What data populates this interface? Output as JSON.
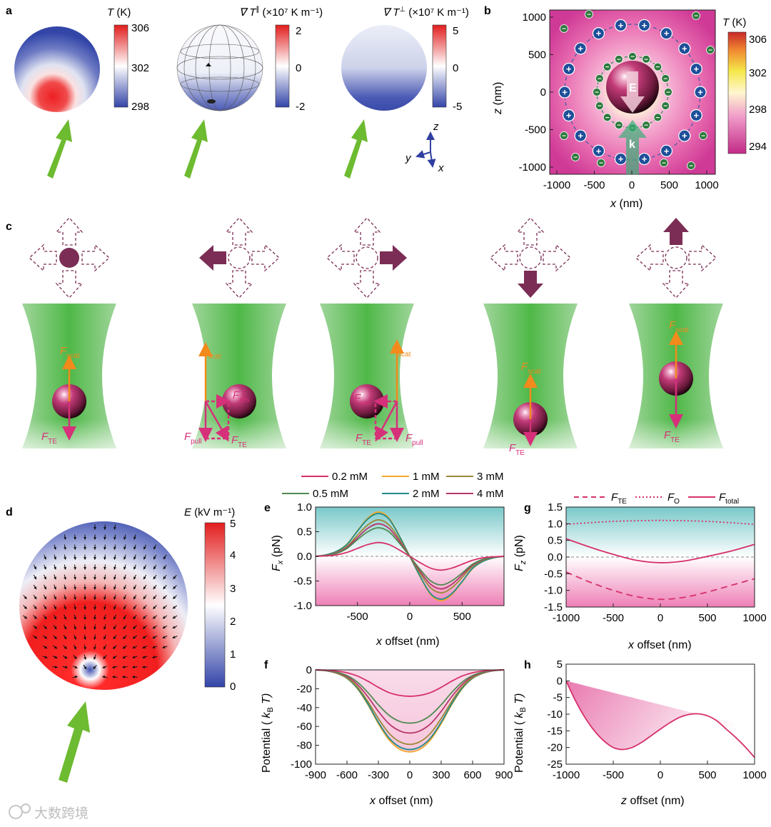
{
  "watermark": {
    "text": "大数跨境"
  },
  "panels": {
    "a": {
      "label": "a",
      "colorbars": [
        {
          "title_sym": "T",
          "title_unit": " (K)",
          "ticks": [
            "306",
            "302",
            "298"
          ]
        },
        {
          "title_sym": "∇ T",
          "title_sup": "∥",
          "title_unit": " (×10⁷ K m⁻¹)",
          "ticks": [
            "2",
            "0",
            "-2"
          ]
        },
        {
          "title_sym": "∇ T",
          "title_sup": "⊥",
          "title_unit": " (×10⁷ K m⁻¹)",
          "ticks": [
            "5",
            "0",
            "-5"
          ]
        }
      ],
      "axes_triad": {
        "z": "z",
        "y": "y",
        "x": "x"
      }
    },
    "b": {
      "label": "b",
      "xlabel_sym": "x",
      "xlabel_unit": " (nm)",
      "ylabel_sym": "z",
      "ylabel_unit": " (nm)",
      "xticks": [
        "-1000",
        "-500",
        "0",
        "500",
        "1000"
      ],
      "yticks": [
        "1000",
        "500",
        "0",
        "-500",
        "-1000"
      ],
      "colorbar": {
        "title_sym": "T",
        "title_unit": " (K)",
        "ticks": [
          "306",
          "302",
          "298",
          "294"
        ]
      },
      "E_label": "E",
      "k_label": "k",
      "plus": "+",
      "minus": "−"
    },
    "c": {
      "label": "c",
      "F_scat_main": "F",
      "F_scat_sub": "scat",
      "F_TE_main": "F",
      "F_TE_sub": "TE",
      "F_res_main": "F",
      "F_res_sub": "res",
      "F_pull_main": "F",
      "F_pull_sub": "pull"
    },
    "d": {
      "label": "d",
      "colorbar": {
        "title_sym": "E",
        "title_unit": " (kV m⁻¹)",
        "ticks": [
          "5",
          "4",
          "3",
          "2",
          "1",
          "0"
        ]
      }
    },
    "e": {
      "label": "e",
      "ylabel_sym": "F",
      "ylabel_sub": "x",
      "ylabel_unit": " (pN)",
      "xlabel_sym": "x",
      "xlabel_unit": " offset (nm)"
    },
    "f": {
      "label": "f",
      "ylabel_pre": "Potential ( ",
      "ylabel_sym": "k",
      "ylabel_sub": "B",
      "ylabel_post": " T)",
      "xlabel_sym": "x",
      "xlabel_unit": " offset (nm)"
    },
    "g": {
      "label": "g",
      "ylabel_sym": "F",
      "ylabel_sub": "z",
      "ylabel_unit": " (pN)",
      "xlabel_sym": "x",
      "xlabel_unit": " offset (nm)",
      "legend": [
        {
          "main": "F",
          "sub": "TE"
        },
        {
          "main": "F",
          "sub": "O"
        },
        {
          "main": "F",
          "sub": "total"
        }
      ]
    },
    "h": {
      "label": "h",
      "ylabel_pre": "Potential ( ",
      "ylabel_sym": "k",
      "ylabel_sub": "B",
      "ylabel_post": " T)",
      "xlabel_sym": "z",
      "xlabel_unit": " offset (nm)"
    }
  },
  "legend_ef": [
    "0.2 mM",
    "1 mM",
    "3 mM",
    "0.5 mM",
    "2 mM",
    "4 mM"
  ],
  "colors": {
    "c02": "#d6306a",
    "c05": "#4f8a50",
    "c1": "#f4a62a",
    "c2": "#1f8b8b",
    "c3": "#9a8a36",
    "c4": "#b5356b",
    "arrow_green": "#6dbb30",
    "magenta": "#d6307a",
    "orange": "#f28a1c",
    "maroon": "#7b2d55"
  },
  "chart_data": [
    {
      "panel": "e",
      "type": "line",
      "xlabel": "x offset (nm)",
      "ylabel": "Fx (pN)",
      "xlim": [
        -900,
        900
      ],
      "ylim": [
        -1.0,
        1.0
      ],
      "xticks": [
        -500,
        0,
        500
      ],
      "yticks": [
        1.0,
        0.5,
        0.0,
        -0.5,
        -1.0
      ],
      "x": [
        -900,
        -800,
        -700,
        -600,
        -500,
        -400,
        -300,
        -200,
        -100,
        0,
        100,
        200,
        300,
        400,
        500,
        600,
        700,
        800,
        900
      ],
      "series": [
        {
          "name": "0.2 mM",
          "color": "#d6306a",
          "values": [
            0,
            0.01,
            0.03,
            0.08,
            0.16,
            0.24,
            0.28,
            0.24,
            0.13,
            0,
            -0.13,
            -0.24,
            -0.28,
            -0.24,
            -0.16,
            -0.08,
            -0.03,
            -0.01,
            0
          ]
        },
        {
          "name": "0.5 mM",
          "color": "#4f8a50",
          "values": [
            0,
            0.02,
            0.06,
            0.16,
            0.34,
            0.5,
            0.58,
            0.5,
            0.27,
            0,
            -0.27,
            -0.5,
            -0.58,
            -0.5,
            -0.34,
            -0.16,
            -0.06,
            -0.02,
            0
          ]
        },
        {
          "name": "1 mM",
          "color": "#f4a62a",
          "values": [
            0,
            0.03,
            0.1,
            0.25,
            0.52,
            0.78,
            0.9,
            0.78,
            0.42,
            0,
            -0.42,
            -0.78,
            -0.9,
            -0.78,
            -0.52,
            -0.25,
            -0.1,
            -0.03,
            0
          ]
        },
        {
          "name": "2 mM",
          "color": "#1f8b8b",
          "values": [
            0,
            0.03,
            0.1,
            0.24,
            0.51,
            0.76,
            0.87,
            0.76,
            0.41,
            0,
            -0.41,
            -0.76,
            -0.87,
            -0.76,
            -0.51,
            -0.24,
            -0.1,
            -0.03,
            0
          ]
        },
        {
          "name": "3 mM",
          "color": "#9a8a36",
          "values": [
            0,
            0.02,
            0.08,
            0.2,
            0.43,
            0.64,
            0.74,
            0.64,
            0.35,
            0,
            -0.35,
            -0.64,
            -0.74,
            -0.64,
            -0.43,
            -0.2,
            -0.08,
            -0.02,
            0
          ]
        },
        {
          "name": "4 mM",
          "color": "#b5356b",
          "values": [
            0,
            0.02,
            0.07,
            0.18,
            0.38,
            0.57,
            0.66,
            0.57,
            0.31,
            0,
            -0.31,
            -0.57,
            -0.66,
            -0.57,
            -0.38,
            -0.18,
            -0.07,
            -0.02,
            0
          ]
        }
      ]
    },
    {
      "panel": "f",
      "type": "line",
      "xlabel": "x offset (nm)",
      "ylabel": "Potential (kB T)",
      "xlim": [
        -900,
        900
      ],
      "ylim": [
        -100,
        0
      ],
      "xticks": [
        -900,
        -600,
        -300,
        0,
        300,
        600,
        900
      ],
      "yticks": [
        0,
        -20,
        -40,
        -60,
        -80,
        -100
      ],
      "x": [
        -900,
        -800,
        -700,
        -600,
        -500,
        -400,
        -300,
        -200,
        -100,
        0,
        100,
        200,
        300,
        400,
        500,
        600,
        700,
        800,
        900
      ],
      "series": [
        {
          "name": "0.2 mM",
          "color": "#d6306a",
          "values": [
            0,
            -0.3,
            -1.2,
            -3,
            -6.5,
            -12,
            -18.5,
            -24,
            -27,
            -28,
            -27,
            -24,
            -18.5,
            -12,
            -6.5,
            -3,
            -1.2,
            -0.3,
            0
          ]
        },
        {
          "name": "0.5 mM",
          "color": "#4f8a50",
          "values": [
            0,
            -0.6,
            -2.4,
            -6,
            -13,
            -24,
            -37,
            -48,
            -54.5,
            -56.5,
            -54.5,
            -48,
            -37,
            -24,
            -13,
            -6,
            -2.4,
            -0.6,
            0
          ]
        },
        {
          "name": "1 mM",
          "color": "#f4a62a",
          "values": [
            0,
            -0.9,
            -3.5,
            -9,
            -20,
            -37,
            -57,
            -74,
            -84,
            -87,
            -84,
            -74,
            -57,
            -37,
            -20,
            -9,
            -3.5,
            -0.9,
            0
          ]
        },
        {
          "name": "2 mM",
          "color": "#1f8b8b",
          "values": [
            0,
            -0.9,
            -3.4,
            -8.8,
            -19.5,
            -36,
            -55.5,
            -72,
            -81.5,
            -84.5,
            -81.5,
            -72,
            -55.5,
            -36,
            -19.5,
            -8.8,
            -3.4,
            -0.9,
            0
          ]
        },
        {
          "name": "3 mM",
          "color": "#9a8a36",
          "values": [
            0,
            -0.8,
            -3.2,
            -8.2,
            -18,
            -33.5,
            -51.5,
            -67,
            -76,
            -79,
            -76,
            -67,
            -51.5,
            -33.5,
            -18,
            -8.2,
            -3.2,
            -0.8,
            0
          ]
        },
        {
          "name": "4 mM",
          "color": "#b5356b",
          "values": [
            0,
            -0.7,
            -2.8,
            -7,
            -15.5,
            -28.5,
            -44,
            -57,
            -64.5,
            -67,
            -64.5,
            -57,
            -44,
            -28.5,
            -15.5,
            -7,
            -2.8,
            -0.7,
            0
          ]
        }
      ]
    },
    {
      "panel": "g",
      "type": "line",
      "xlabel": "x offset (nm)",
      "ylabel": "Fz (pN)",
      "xlim": [
        -1000,
        1000
      ],
      "ylim": [
        -1.5,
        1.5
      ],
      "xticks": [
        -1000,
        -500,
        0,
        500,
        1000
      ],
      "yticks": [
        1.5,
        1.0,
        0.5,
        0.0,
        -0.5,
        -1.0,
        -1.5
      ],
      "series": [
        {
          "name": "FTE",
          "style": "dashed",
          "color": "#d6306a",
          "x": [
            -1000,
            -750,
            -500,
            -250,
            0,
            250,
            500,
            750,
            1000
          ],
          "values": [
            -0.45,
            -0.75,
            -1.0,
            -1.19,
            -1.27,
            -1.21,
            -1.05,
            -0.85,
            -0.65
          ]
        },
        {
          "name": "FO",
          "style": "dotted",
          "color": "#d6306a",
          "x": [
            -1000,
            -750,
            -500,
            -250,
            0,
            250,
            500,
            750,
            1000
          ],
          "values": [
            0.98,
            1.03,
            1.07,
            1.09,
            1.1,
            1.09,
            1.07,
            1.03,
            0.98
          ]
        },
        {
          "name": "Ftotal",
          "style": "solid",
          "color": "#d6306a",
          "x": [
            -1000,
            -750,
            -500,
            -250,
            0,
            250,
            500,
            750,
            1000
          ],
          "values": [
            0.55,
            0.3,
            0.08,
            -0.1,
            -0.17,
            -0.12,
            0.02,
            0.18,
            0.38
          ]
        }
      ]
    },
    {
      "panel": "h",
      "type": "line",
      "xlabel": "z offset (nm)",
      "ylabel": "Potential (kB T)",
      "xlim": [
        -1000,
        1000
      ],
      "ylim": [
        -25,
        5
      ],
      "xticks": [
        -1000,
        -500,
        0,
        500,
        1000
      ],
      "yticks": [
        5,
        0,
        -5,
        -10,
        -15,
        -20,
        -25
      ],
      "series": [
        {
          "name": "",
          "color": "#d6306a",
          "x": [
            -1000,
            -900,
            -800,
            -700,
            -600,
            -500,
            -400,
            -300,
            -200,
            -100,
            0,
            100,
            200,
            300,
            400,
            500,
            600,
            700,
            800,
            900,
            1000
          ],
          "values": [
            0,
            -6,
            -11,
            -15,
            -18,
            -20,
            -20.6,
            -20,
            -18.5,
            -16.5,
            -14.5,
            -12.6,
            -11,
            -10.1,
            -9.9,
            -10.5,
            -12,
            -14.5,
            -17,
            -19.8,
            -23
          ]
        }
      ]
    }
  ]
}
